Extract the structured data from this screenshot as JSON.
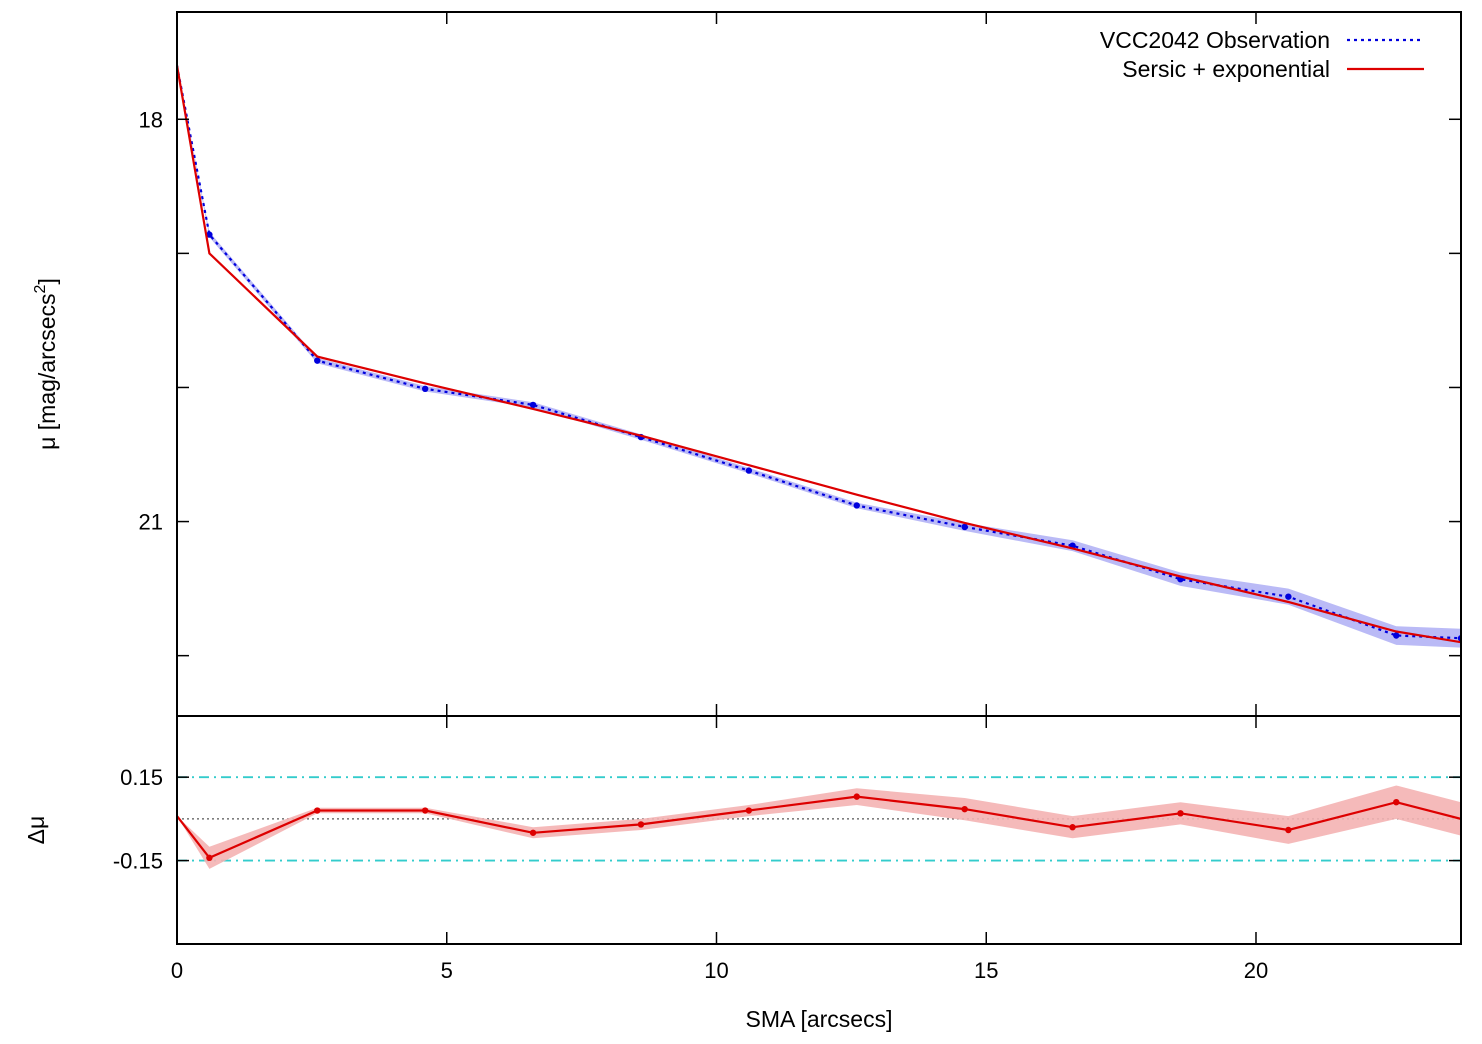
{
  "chart_data": [
    {
      "type": "line",
      "panel": "main",
      "title": "",
      "xlabel": "",
      "ylabel_prefix": "μ [mag/arcsecs",
      "ylabel_sup": "2",
      "ylabel_suffix": "]",
      "xlim": [
        0,
        23.8
      ],
      "ylim": [
        17.2,
        22.45
      ],
      "y_inverted": true,
      "yticks": [
        {
          "value": 18,
          "label": "18"
        },
        {
          "value": 21,
          "label": "21"
        }
      ],
      "yticks_minor": [
        19,
        20,
        22
      ],
      "grid": false,
      "legend_position": "top-right",
      "series": [
        {
          "name": "VCC2042 Observation",
          "style": "dotted-line-with-points",
          "color": "#0000dd",
          "band_color": "#b3b3f5",
          "x": [
            0,
            0.6,
            2.6,
            4.6,
            6.6,
            8.6,
            10.6,
            12.6,
            14.6,
            16.6,
            18.6,
            20.6,
            22.6,
            23.8
          ],
          "y": [
            17.6,
            18.86,
            19.8,
            20.01,
            20.13,
            20.37,
            20.62,
            20.88,
            21.04,
            21.18,
            21.43,
            21.56,
            21.85,
            21.87
          ],
          "band": [
            0,
            0.02,
            0.02,
            0.02,
            0.02,
            0.02,
            0.02,
            0.02,
            0.03,
            0.04,
            0.05,
            0.06,
            0.07,
            0.07
          ]
        },
        {
          "name": "Sersic + exponential",
          "style": "solid-line",
          "color": "#dd0000",
          "x": [
            0,
            0.6,
            2.6,
            4.6,
            6.6,
            8.6,
            10.6,
            12.6,
            14.6,
            16.6,
            18.6,
            20.6,
            22.6,
            23.8
          ],
          "y": [
            17.6,
            19.0,
            19.77,
            19.97,
            20.16,
            20.36,
            20.58,
            20.8,
            21.01,
            21.2,
            21.41,
            21.6,
            21.82,
            21.9
          ]
        }
      ]
    },
    {
      "type": "line",
      "panel": "residual",
      "title": "",
      "xlabel": "SMA [arcsecs]",
      "ylabel": "Δμ",
      "xlim": [
        0,
        23.8
      ],
      "ylim": [
        -0.45,
        0.37
      ],
      "xticks": [
        {
          "value": 0,
          "label": "0"
        },
        {
          "value": 5,
          "label": "5"
        },
        {
          "value": 10,
          "label": "10"
        },
        {
          "value": 15,
          "label": "15"
        },
        {
          "value": 20,
          "label": "20"
        }
      ],
      "yticks": [
        {
          "value": 0.15,
          "label": "0.15"
        },
        {
          "value": -0.15,
          "label": "-0.15"
        }
      ],
      "reference_lines": [
        {
          "value": 0.15,
          "style": "dash-dot",
          "color": "#33cccc"
        },
        {
          "value": -0.15,
          "style": "dash-dot",
          "color": "#33cccc"
        },
        {
          "value": 0,
          "style": "dotted",
          "color": "#555555"
        }
      ],
      "grid": false,
      "series": [
        {
          "name": "",
          "style": "solid-line-with-points",
          "color": "#dd0000",
          "band_color": "#f4b3b3",
          "x": [
            0,
            0.6,
            2.6,
            4.6,
            6.6,
            8.6,
            10.6,
            12.6,
            14.6,
            16.6,
            18.6,
            20.6,
            22.6,
            23.8
          ],
          "y": [
            0.01,
            -0.14,
            0.03,
            0.03,
            -0.05,
            -0.02,
            0.03,
            0.08,
            0.035,
            -0.03,
            0.02,
            -0.04,
            0.06,
            0.0
          ],
          "band": [
            0.0,
            0.04,
            0.01,
            0.01,
            0.02,
            0.02,
            0.02,
            0.03,
            0.04,
            0.04,
            0.04,
            0.05,
            0.06,
            0.06
          ]
        }
      ]
    }
  ]
}
